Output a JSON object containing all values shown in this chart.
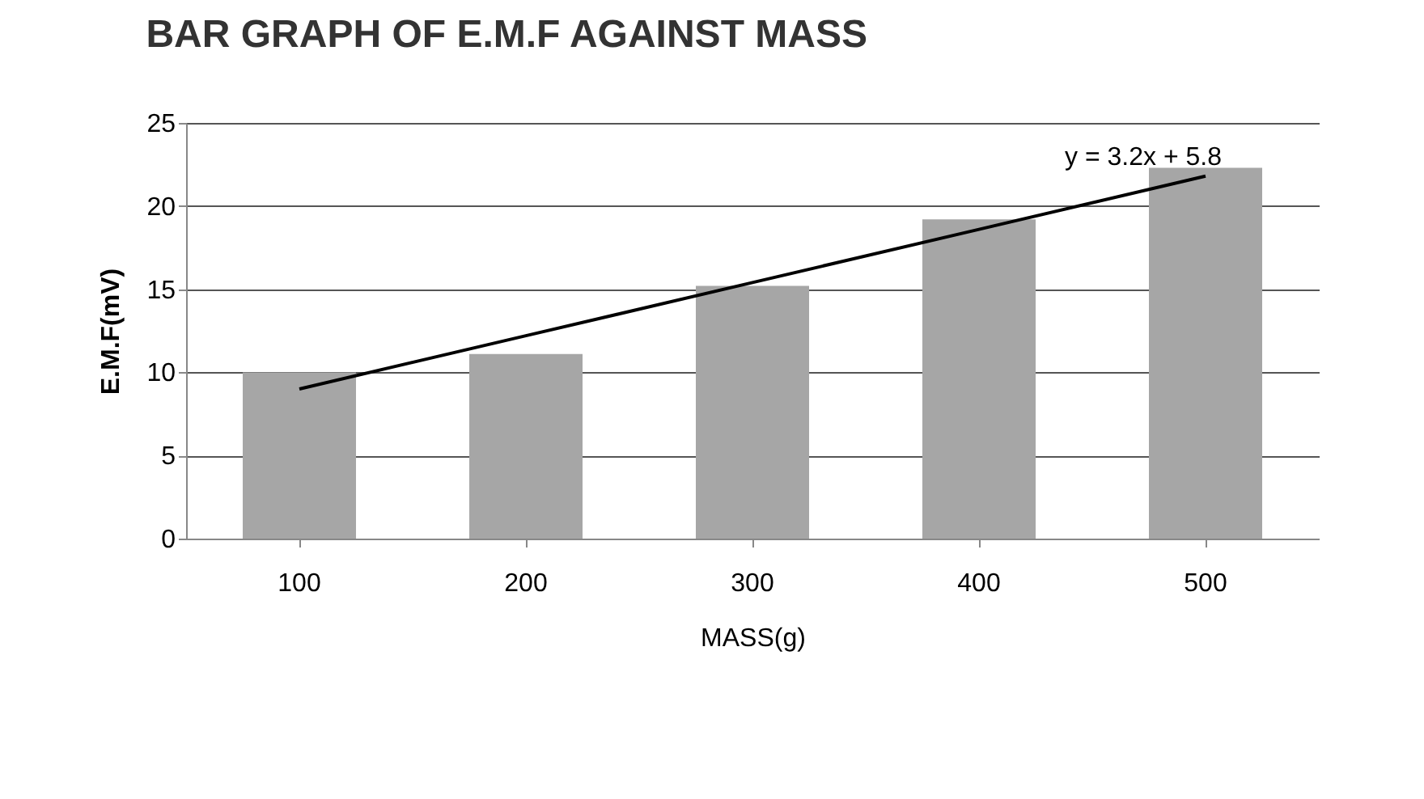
{
  "chart_data": {
    "type": "bar",
    "title": "BAR GRAPH OF E.M.F AGAINST MASS",
    "xlabel": "MASS(g)",
    "ylabel": "E.M.F(mV)",
    "categories": [
      "100",
      "200",
      "300",
      "400",
      "500"
    ],
    "series": [
      {
        "color": "#a6a6a6",
        "values": [
          10,
          11.1,
          15.2,
          19.2,
          22.3
        ]
      },
      {
        "type": "line",
        "color": "#000000",
        "x": [
          "100",
          "200",
          "300",
          "400",
          "500"
        ],
        "values": [
          9,
          12.2,
          15.4,
          18.6,
          21.8
        ]
      }
    ],
    "annotations": [
      {
        "text": "y = 3.2x + 5.8",
        "x": "500",
        "y": 21.8
      }
    ],
    "ylim": [
      0,
      25
    ],
    "yticks": [
      0,
      5,
      10,
      15,
      20,
      25
    ],
    "grid": "y"
  }
}
